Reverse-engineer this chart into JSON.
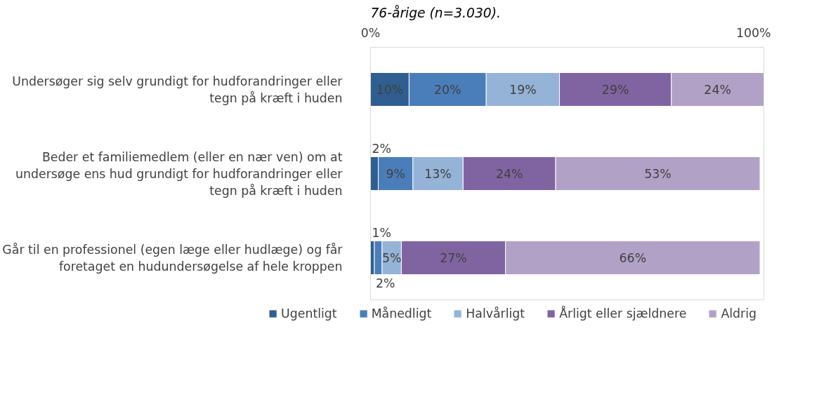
{
  "chart_data": {
    "type": "bar",
    "orientation": "horizontal",
    "stacked": true,
    "annotations": [
      "76-årige (n=3.030)."
    ],
    "categories": [
      "Undersøger sig selv grundigt for hudforandringer eller tegn på kræft i huden",
      "Beder et familiemedlem (eller en nær ven) om at undersøge ens hud grundigt for hudforandringer eller tegn på kræft i huden",
      "Går til en professionel (egen læge eller hudlæge) og får foretaget en hudundersøgelse af hele kroppen"
    ],
    "series": [
      {
        "name": "Ugentligt",
        "color": "#2f5f91",
        "values": [
          10,
          2,
          1
        ],
        "value_labels": [
          "10%",
          "2%",
          "1%"
        ]
      },
      {
        "name": "Månedligt",
        "color": "#4a7ebb",
        "values": [
          20,
          9,
          2
        ],
        "value_labels": [
          "20%",
          "9%",
          "2%"
        ]
      },
      {
        "name": "Halvårligt",
        "color": "#95b3d7",
        "values": [
          19,
          13,
          5
        ],
        "value_labels": [
          "19%",
          "13%",
          "5%"
        ]
      },
      {
        "name": "Årligt eller sjældnere",
        "color": "#8064a2",
        "values": [
          29,
          24,
          27
        ],
        "value_labels": [
          "29%",
          "24%",
          "27%"
        ]
      },
      {
        "name": "Aldrig",
        "color": "#b2a1c7",
        "values": [
          24,
          53,
          66
        ],
        "value_labels": [
          "24%",
          "53%",
          "66%"
        ]
      }
    ],
    "xlim": [
      0,
      102
    ],
    "xticks": [
      {
        "value": 0,
        "label": "0%"
      },
      {
        "value": 100,
        "label": "100%"
      }
    ],
    "grid": false,
    "legend": "bottom"
  }
}
